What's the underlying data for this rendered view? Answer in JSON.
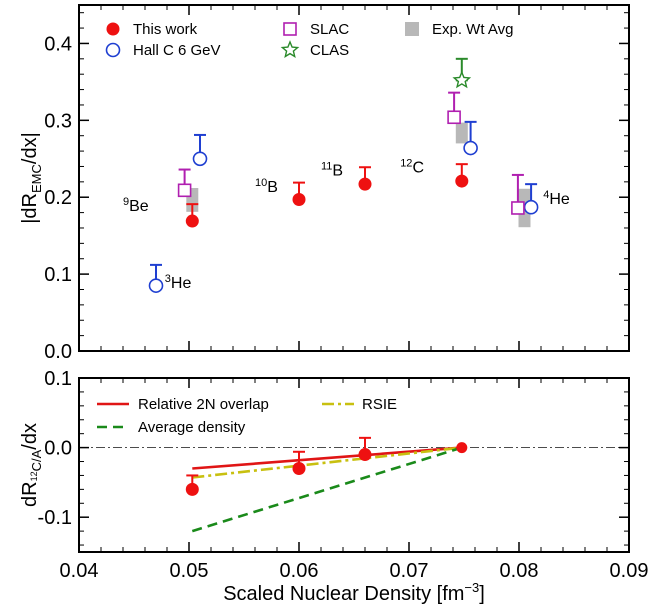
{
  "chart_data": [
    {
      "type": "scatter",
      "ylabel": "|dR_EMC/dx|",
      "ylim": [
        0.0,
        0.45
      ],
      "xlim": [
        0.04,
        0.09
      ],
      "ytick_labels": [
        "0.0",
        "0.1",
        "0.2",
        "0.3",
        "0.4"
      ],
      "yticks": [
        0.0,
        0.1,
        0.2,
        0.3,
        0.4
      ],
      "legend": [
        {
          "label": "This work",
          "marker": "filled-circle",
          "color": "#ee1111"
        },
        {
          "label": "Hall C 6 GeV",
          "marker": "open-circle",
          "color": "#1f3fd1"
        },
        {
          "label": "SLAC",
          "marker": "open-square",
          "color": "#b01fb0"
        },
        {
          "label": "CLAS",
          "marker": "open-star",
          "color": "#2a8a2a"
        },
        {
          "label": "Exp. Wt Avg",
          "marker": "gray-band",
          "color": "#b8b8b8"
        }
      ],
      "series": [
        {
          "name": "This work",
          "points": [
            {
              "x": 0.0503,
              "y": 0.169,
              "err": 0.022
            },
            {
              "x": 0.06,
              "y": 0.197,
              "err": 0.022
            },
            {
              "x": 0.066,
              "y": 0.217,
              "err": 0.022
            },
            {
              "x": 0.0748,
              "y": 0.221,
              "err": 0.022
            }
          ]
        },
        {
          "name": "Hall C 6 GeV",
          "points": [
            {
              "x": 0.047,
              "y": 0.085,
              "err": 0.027
            },
            {
              "x": 0.051,
              "y": 0.25,
              "err": 0.031
            },
            {
              "x": 0.0756,
              "y": 0.264,
              "err": 0.034
            },
            {
              "x": 0.0811,
              "y": 0.187,
              "err": 0.03
            }
          ]
        },
        {
          "name": "SLAC",
          "points": [
            {
              "x": 0.0496,
              "y": 0.209,
              "err": 0.027
            },
            {
              "x": 0.0741,
              "y": 0.304,
              "err": 0.032
            },
            {
              "x": 0.0799,
              "y": 0.186,
              "err": 0.043
            }
          ]
        },
        {
          "name": "CLAS",
          "points": [
            {
              "x": 0.0748,
              "y": 0.352,
              "err": 0.028
            }
          ]
        },
        {
          "name": "Exp. Wt Avg",
          "bands": [
            {
              "x": 0.0503,
              "ymin": 0.181,
              "ymax": 0.212
            },
            {
              "x": 0.0748,
              "ymin": 0.27,
              "ymax": 0.297
            },
            {
              "x": 0.0805,
              "ymin": 0.161,
              "ymax": 0.211
            }
          ]
        }
      ],
      "annotations": [
        {
          "sup": "9",
          "base": "Be",
          "x": 0.044,
          "y": 0.182
        },
        {
          "sup": "3",
          "base": "He",
          "x": 0.0478,
          "y": 0.082
        },
        {
          "sup": "10",
          "base": "B",
          "x": 0.056,
          "y": 0.207
        },
        {
          "sup": "11",
          "base": "B",
          "x": 0.062,
          "y": 0.228
        },
        {
          "sup": "12",
          "base": "C",
          "x": 0.0692,
          "y": 0.232
        },
        {
          "sup": "4",
          "base": "He",
          "x": 0.0822,
          "y": 0.191
        }
      ]
    },
    {
      "type": "line",
      "ylabel": "dR_12C/A/dx",
      "xlabel": "Scaled Nuclear Density [fm^-3]",
      "xlim": [
        0.04,
        0.09
      ],
      "ylim": [
        -0.15,
        0.1
      ],
      "xticks": [
        0.04,
        0.05,
        0.06,
        0.07,
        0.08,
        0.09
      ],
      "xtick_labels": [
        "0.04",
        "0.05",
        "0.06",
        "0.07",
        "0.08",
        "0.09"
      ],
      "yticks": [
        -0.1,
        0.0,
        0.1
      ],
      "ytick_labels": [
        "-0.1",
        "0.0",
        "0.1"
      ],
      "reference_line_y": 0.0,
      "legend": [
        {
          "label": "Relative 2N overlap",
          "style": "solid",
          "color": "#e01515"
        },
        {
          "label": "RSIE",
          "style": "dash-dot",
          "color": "#c8c010"
        },
        {
          "label": "Average density",
          "style": "dashed",
          "color": "#1a8a1a"
        }
      ],
      "lines": [
        {
          "name": "Relative 2N overlap",
          "x": [
            0.0503,
            0.0748
          ],
          "y": [
            -0.03,
            0.0
          ]
        },
        {
          "name": "RSIE",
          "x": [
            0.0503,
            0.0748
          ],
          "y": [
            -0.043,
            0.0
          ]
        },
        {
          "name": "Average density",
          "x": [
            0.0503,
            0.0748
          ],
          "y": [
            -0.12,
            0.0
          ]
        }
      ],
      "points": [
        {
          "x": 0.0503,
          "y": -0.06,
          "err": 0.02
        },
        {
          "x": 0.06,
          "y": -0.03,
          "err": 0.024
        },
        {
          "x": 0.066,
          "y": -0.01,
          "err": 0.024
        },
        {
          "x": 0.0748,
          "y": 0.0,
          "err": 0.0
        }
      ]
    }
  ]
}
